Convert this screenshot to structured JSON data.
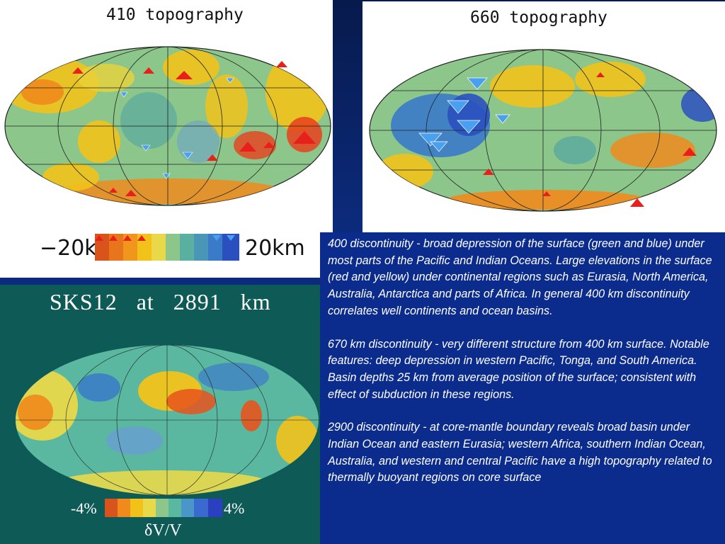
{
  "panels": {
    "top_left": {
      "title": "410 topography",
      "scale_min": "−20km",
      "scale_max": "20km"
    },
    "top_right": {
      "title": "660 topography"
    },
    "bottom_left": {
      "title": "SKS12   at   2891   km",
      "scale_min": "-4%",
      "scale_max": "4%",
      "scale_unit": "δV/V"
    }
  },
  "text": {
    "p1": "400 discontinuity - broad depression of the surface (green and blue) under most parts of the Pacific and Indian Oceans. Large elevations in the surface (red and yellow) under continental regions such as Eurasia, North America, Australia, Antarctica and parts of Africa. In general 400 km discontinuity correlates well continents and ocean basins.",
    "p2": "670 km discontinuity - very different structure from 400 km surface. Notable features: deep depression in western Pacific, Tonga, and South America. Basin depths 25 km from average position of the surface; consistent with effect of subduction in these regions.",
    "p3": "2900 discontinuity - at core-mantle boundary reveals broad basin under Indian Ocean and eastern Eurasia; western Africa, southern Indian Ocean, Australia, and western and central Pacific have a high topography related to thermally buoyant regions on core surface"
  },
  "colors": {
    "slide_background": "#0a2a8c",
    "sks_background": "#0e5a56",
    "high": "#e8401c",
    "mid": "#f2c21a",
    "low": "#2a64d0"
  }
}
